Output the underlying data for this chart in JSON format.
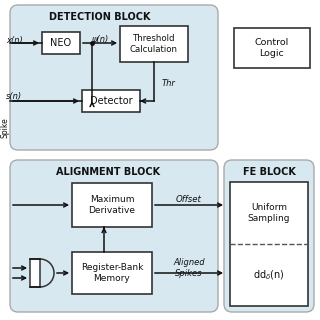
{
  "fig_width": 3.2,
  "fig_height": 3.2,
  "dpi": 100,
  "bg_color": "#ffffff",
  "block_bg": "#d8e8f0",
  "box_color": "#ffffff",
  "box_edge": "#333333",
  "arrow_color": "#111111",
  "title_detection": "DETECTION BLOCK",
  "title_alignment": "ALIGNMENT BLOCK",
  "title_fe": "FE BLOCK"
}
